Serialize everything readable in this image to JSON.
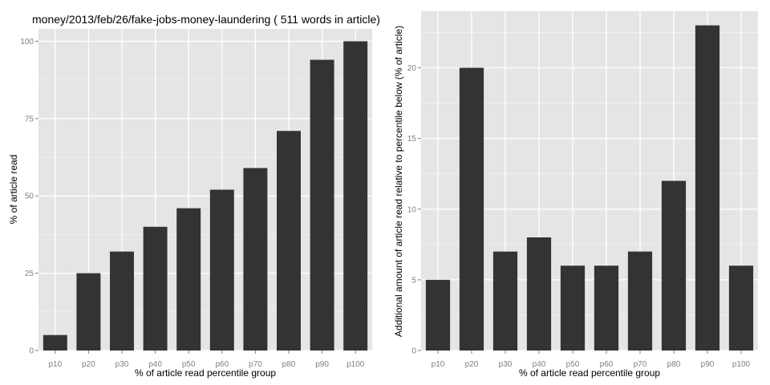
{
  "chart_data": [
    {
      "type": "bar",
      "title": "money/2013/feb/26/fake-jobs-money-laundering ( 511 words in article)",
      "xlabel": "% of article read percentile group",
      "ylabel": "% of article read",
      "categories": [
        "p10",
        "p20",
        "p30",
        "p40",
        "p50",
        "p60",
        "p70",
        "p80",
        "p90",
        "p100"
      ],
      "values": [
        5,
        25,
        32,
        40,
        46,
        52,
        59,
        71,
        94,
        100
      ],
      "ylim": [
        0,
        104
      ],
      "yticks": [
        0,
        25,
        50,
        75,
        100
      ],
      "grid": true,
      "bar_color": "#333333",
      "panel_color": "#e5e5e5"
    },
    {
      "type": "bar",
      "title": "",
      "xlabel": "% of article read percentile group",
      "ylabel": "Additional amount of article read relative to percentile below (% of article)",
      "categories": [
        "p10",
        "p20",
        "p30",
        "p40",
        "p50",
        "p60",
        "p70",
        "p80",
        "p90",
        "p100"
      ],
      "values": [
        5,
        20,
        7,
        8,
        6,
        6,
        7,
        12,
        23,
        6
      ],
      "ylim": [
        0,
        24
      ],
      "yticks": [
        0,
        5,
        10,
        15,
        20
      ],
      "grid": true,
      "bar_color": "#333333",
      "panel_color": "#e5e5e5"
    }
  ]
}
